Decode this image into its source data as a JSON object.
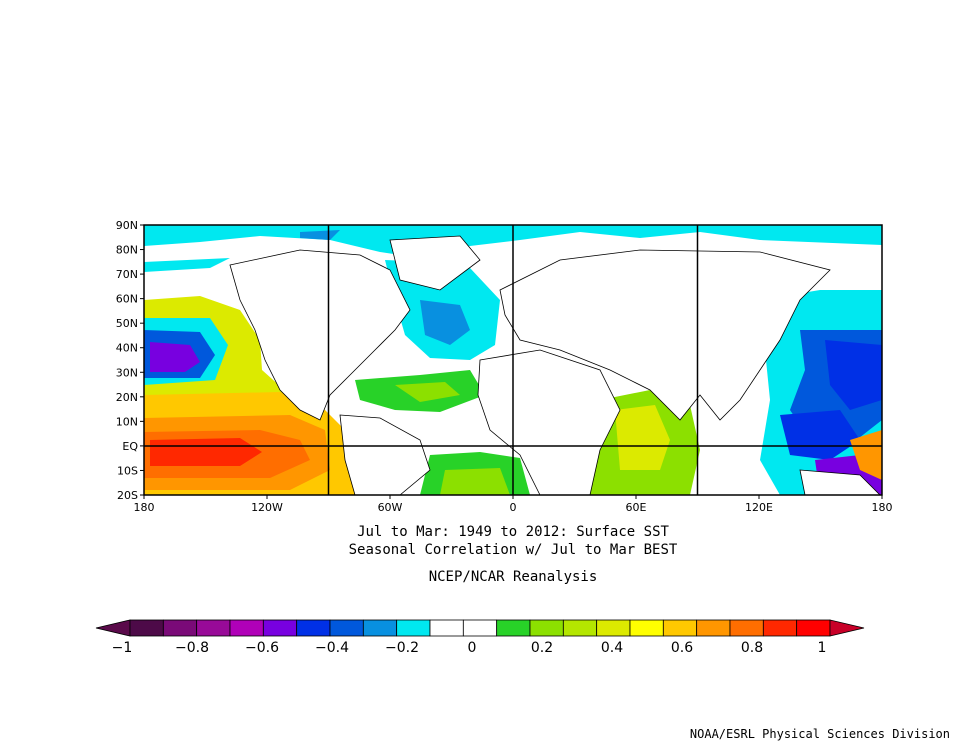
{
  "chart_data": {
    "type": "heatmap",
    "title_line1": "Jul to Mar: 1949 to 2012: Surface SST",
    "title_line2": "Seasonal Correlation w/ Jul to Mar BEST",
    "subtitle": "NCEP/NCAR Reanalysis",
    "credit": "NOAA/ESRL Physical Sciences Division",
    "x_ticks": [
      "180",
      "120W",
      "60W",
      "0",
      "60E",
      "120E",
      "180"
    ],
    "y_ticks": [
      "90N",
      "80N",
      "70N",
      "60N",
      "50N",
      "40N",
      "30N",
      "20N",
      "10N",
      "EQ",
      "10S",
      "20S"
    ],
    "xlim": [
      -180,
      180
    ],
    "ylim": [
      -20,
      90
    ],
    "colorbar": {
      "range": [
        -1,
        1
      ],
      "labels": [
        "−1",
        "−0.8",
        "−0.6",
        "−0.4",
        "−0.2",
        "0",
        "0.2",
        "0.4",
        "0.6",
        "0.8",
        "1"
      ],
      "low_color": "#5a0a4a",
      "high_color": "#c80028",
      "colors": [
        "#4d0a48",
        "#7a0a78",
        "#980a98",
        "#b000b8",
        "#7800e0",
        "#0030e6",
        "#0058dc",
        "#0890e0",
        "#00e8f0",
        "#ffffff",
        "#ffffff",
        "#28d228",
        "#8ce000",
        "#b4e600",
        "#dcea00",
        "#ffff00",
        "#ffc800",
        "#ff9600",
        "#ff6e00",
        "#ff2800",
        "#ff0000"
      ]
    },
    "grid_lines_x": [
      -90,
      0,
      90
    ],
    "grid_lines_y": [
      0
    ]
  }
}
